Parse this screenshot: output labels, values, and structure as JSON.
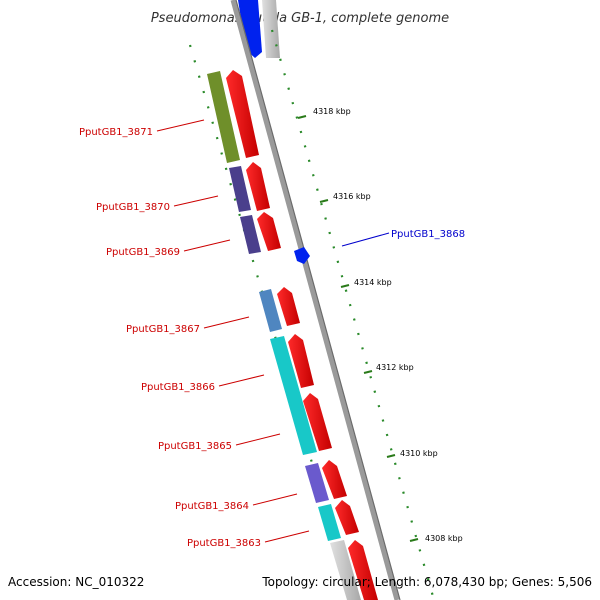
{
  "title": "Pseudomonas putida GB-1, complete genome",
  "footer": {
    "accession": "Accession: NC_010322",
    "summary": "Topology: circular; Length: 6,078,430 bp; Genes: 5,506"
  },
  "colors": {
    "label_reverse": "#cc0000",
    "label_forward": "#0000cc",
    "cds": "#ff0000",
    "tick": "#2a7a1a",
    "backbone": "#8a8a8a"
  },
  "scale_labels": [
    {
      "id": "kbp-4318",
      "text": "4318 kbp"
    },
    {
      "id": "kbp-4316",
      "text": "4316 kbp"
    },
    {
      "id": "kbp-4314",
      "text": "4314 kbp"
    },
    {
      "id": "kbp-4312",
      "text": "4312 kbp"
    },
    {
      "id": "kbp-4310",
      "text": "4310 kbp"
    },
    {
      "id": "kbp-4308",
      "text": "4308 kbp"
    }
  ],
  "genes": [
    {
      "id": "3871",
      "label": "PputGB1_3871",
      "strand": "reverse",
      "cog_color": "#6f8f2a"
    },
    {
      "id": "3870",
      "label": "PputGB1_3870",
      "strand": "reverse",
      "cog_color": "#4a3f8c"
    },
    {
      "id": "3869",
      "label": "PputGB1_3869",
      "strand": "reverse",
      "cog_color": "#4a3f8c"
    },
    {
      "id": "3868",
      "label": "PputGB1_3868",
      "strand": "forward",
      "cog_color": "#0022ee"
    },
    {
      "id": "3867",
      "label": "PputGB1_3867",
      "strand": "reverse",
      "cog_color": "#4f86c0"
    },
    {
      "id": "3866",
      "label": "PputGB1_3866",
      "strand": "reverse",
      "cog_color": "#18c8c8"
    },
    {
      "id": "3865",
      "label": "PputGB1_3865",
      "strand": "reverse",
      "cog_color": "#18c8c8"
    },
    {
      "id": "3864",
      "label": "PputGB1_3864",
      "strand": "reverse",
      "cog_color": "#6a5acd"
    },
    {
      "id": "3863",
      "label": "PputGB1_3863",
      "strand": "reverse",
      "cog_color": "#18c8c8"
    }
  ]
}
